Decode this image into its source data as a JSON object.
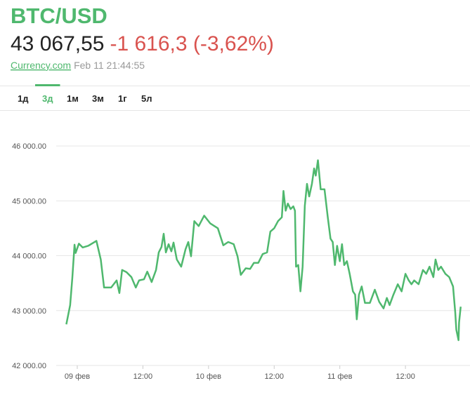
{
  "header": {
    "title": "BTC/USD",
    "price": "43 067,55",
    "change": "-1 616,3 (-3,62%)",
    "source": "Currency.com",
    "timestamp": "Feb 11 21:44:55"
  },
  "tabs": [
    "1д",
    "3д",
    "1м",
    "3м",
    "1г",
    "5л"
  ],
  "active_tab": "3д",
  "chart_data": {
    "type": "line",
    "color": "#4fb86e",
    "x": [
      -2,
      -1.3,
      -0.9,
      -0.5,
      -0.3,
      0.3,
      1,
      2,
      3.5,
      4.3,
      4.9,
      6.2,
      7.2,
      7.7,
      8.2,
      9,
      9.9,
      10.7,
      11.3,
      12.2,
      12.8,
      13.6,
      14.4,
      14.9,
      15.4,
      15.8,
      16.2,
      16.7,
      17.2,
      17.6,
      18.2,
      19,
      19.8,
      20.3,
      20.8,
      21.4,
      22.2,
      23.2,
      24.3,
      25.7,
      26.7,
      27.6,
      28.6,
      29.3,
      29.9,
      30.8,
      31.6,
      32.3,
      33.1,
      33.9,
      34.7,
      35.3,
      36,
      36.7,
      37.4,
      37.7,
      38.1,
      38.5,
      39,
      39.5,
      39.8,
      40,
      40.4,
      40.8,
      41.2,
      41.6,
      42,
      42.4,
      42.9,
      43.3,
      43.6,
      44,
      44.5,
      45.2,
      45.8,
      46.3,
      46.7,
      47.1,
      47.5,
      48,
      48.4,
      48.8,
      49.3,
      49.8,
      50.4,
      50.8,
      51.1,
      51.5,
      52,
      52.6,
      53.5,
      54.4,
      55.2,
      56,
      56.6,
      57.1,
      57.8,
      58.6,
      59.3,
      60,
      60.6,
      61.1,
      61.6,
      62.4,
      63.2,
      63.8,
      64.4,
      65.1,
      65.5,
      66,
      66.5,
      67.3,
      68,
      68.7,
      69.1,
      69.3,
      69.7,
      69.8,
      70.1
    ],
    "values": [
      42750,
      43100,
      43600,
      44200,
      44050,
      44220,
      44150,
      44180,
      44270,
      43930,
      43420,
      43420,
      43550,
      43320,
      43740,
      43700,
      43610,
      43420,
      43550,
      43570,
      43710,
      43520,
      43740,
      44060,
      44160,
      44400,
      44060,
      44210,
      44080,
      44240,
      43930,
      43800,
      44120,
      44250,
      43990,
      44630,
      44540,
      44730,
      44590,
      44500,
      44190,
      44250,
      44210,
      43990,
      43650,
      43770,
      43760,
      43870,
      43870,
      44030,
      44060,
      44440,
      44500,
      44630,
      44700,
      45180,
      44820,
      44950,
      44850,
      44900,
      44820,
      43800,
      43830,
      43350,
      43800,
      44910,
      45310,
      45080,
      45310,
      45590,
      45460,
      45740,
      45210,
      45210,
      44700,
      44310,
      44250,
      43830,
      44180,
      43900,
      44210,
      43830,
      43900,
      43670,
      43350,
      43290,
      42840,
      43290,
      43440,
      43140,
      43140,
      43380,
      43160,
      43040,
      43230,
      43100,
      43290,
      43480,
      43350,
      43670,
      43550,
      43480,
      43550,
      43480,
      43740,
      43670,
      43800,
      43610,
      43930,
      43740,
      43800,
      43670,
      43610,
      43440,
      42970,
      42650,
      42460,
      42780,
      43070
    ],
    "xlim": [
      -3.85,
      71.8
    ],
    "ylim": [
      42000,
      46500
    ],
    "xticks": [
      {
        "value": 0,
        "label": "09 фев"
      },
      {
        "value": 12,
        "label": "12:00"
      },
      {
        "value": 24,
        "label": "10 фев"
      },
      {
        "value": 36,
        "label": "12:00"
      },
      {
        "value": 48,
        "label": "11 фев"
      },
      {
        "value": 60,
        "label": "12:00"
      }
    ],
    "yticks": [
      {
        "value": 42000,
        "label": "42 000.00"
      },
      {
        "value": 43000,
        "label": "43 000.00"
      },
      {
        "value": 44000,
        "label": "44 000.00"
      },
      {
        "value": 45000,
        "label": "45 000.00"
      },
      {
        "value": 46000,
        "label": "46 000.00"
      }
    ],
    "grid": true
  }
}
